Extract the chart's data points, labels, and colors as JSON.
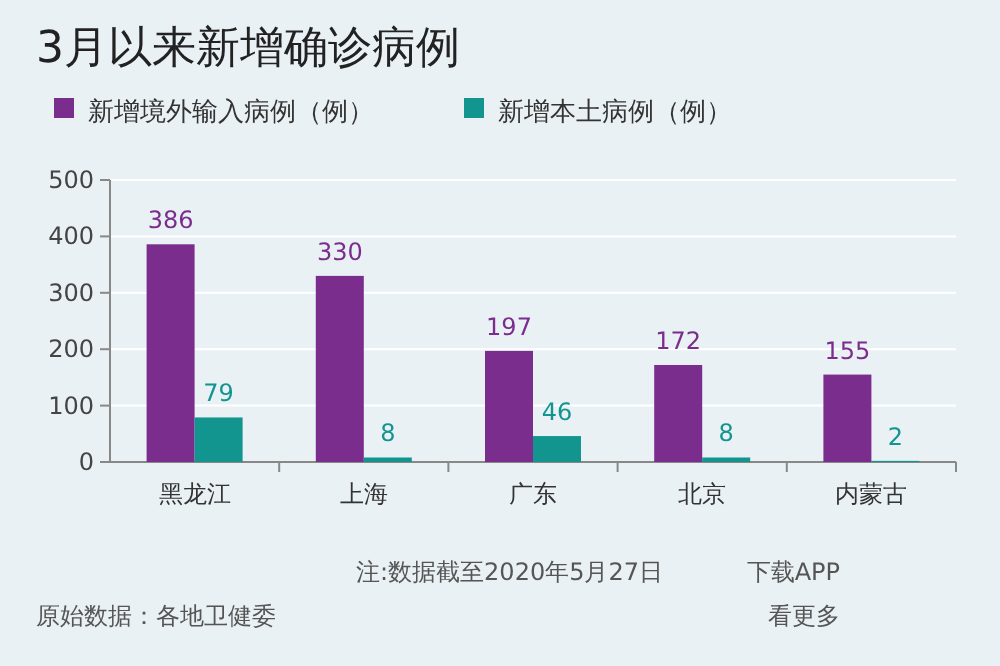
{
  "chart_data": {
    "type": "bar",
    "title": "3月以来新增确诊病例",
    "categories": [
      "黑龙江",
      "上海",
      "广东",
      "北京",
      "内蒙古"
    ],
    "series": [
      {
        "name": "新增境外输入病例（例）",
        "color": "#7b2d8e",
        "values": [
          386,
          330,
          197,
          172,
          155
        ]
      },
      {
        "name": "新增本土病例（例）",
        "color": "#13958f",
        "values": [
          79,
          8,
          46,
          8,
          2
        ]
      }
    ],
    "ylim": [
      0,
      500
    ],
    "yticks": [
      0,
      100,
      200,
      300,
      400,
      500
    ],
    "grid": "y",
    "legend": "top left",
    "data_labels": true,
    "annotations": [
      "注:数据截至2020年5月27日",
      "原始数据：各地卫健委",
      "下载APP",
      "看更多"
    ]
  }
}
